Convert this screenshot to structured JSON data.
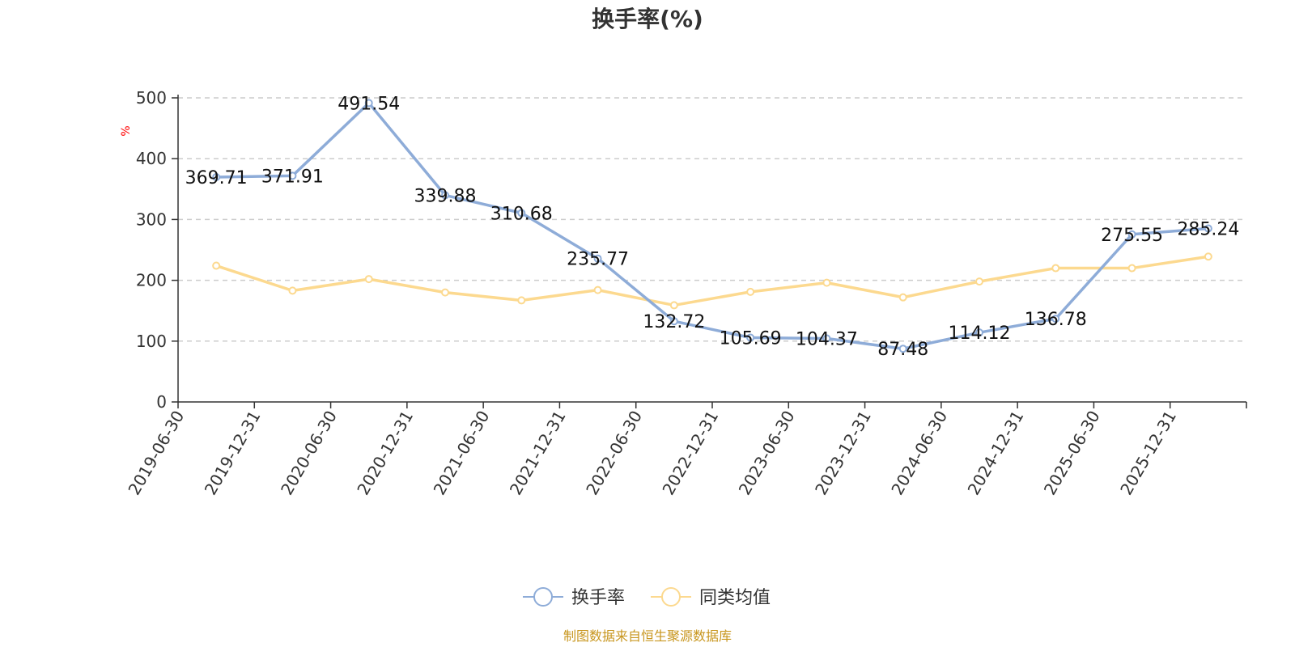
{
  "chart_data": {
    "type": "line",
    "title": "换手率(%)",
    "ylabel": "%",
    "xlabel": "",
    "ylim": [
      0,
      500
    ],
    "yticks": [
      0,
      100,
      200,
      300,
      400,
      500
    ],
    "grid": true,
    "categories": [
      "2019-06-30",
      "2019-12-31",
      "2020-06-30",
      "2020-12-31",
      "2021-06-30",
      "2021-12-31",
      "2022-06-30",
      "2022-12-31",
      "2023-06-30",
      "2023-12-31",
      "2024-06-30",
      "2024-12-31",
      "2025-06-30",
      "2025-12-31"
    ],
    "series": [
      {
        "name": "换手率",
        "color": "#8eacd8",
        "values": [
          369.71,
          371.91,
          491.54,
          339.88,
          310.68,
          235.77,
          132.72,
          105.69,
          104.37,
          87.48,
          114.12,
          136.78,
          275.55,
          285.24
        ],
        "labels": [
          "369.71",
          "371.91",
          "491.54",
          "339.88",
          "310.68",
          "235.77",
          "132.72",
          "105.69",
          "104.37",
          "87.48",
          "114.12",
          "136.78",
          "275.55",
          "285.24"
        ],
        "show_labels": true
      },
      {
        "name": "同类均值",
        "color": "#fcd98f",
        "values": [
          224,
          183,
          202,
          180,
          167,
          184,
          159,
          181,
          196,
          172,
          198,
          220,
          220,
          239
        ],
        "show_labels": false
      }
    ],
    "legend_position": "bottom-center",
    "ylabel_color": "#ff0000"
  },
  "footer": {
    "source": "制图数据来自恒生聚源数据库",
    "source_color": "#c8961e"
  }
}
